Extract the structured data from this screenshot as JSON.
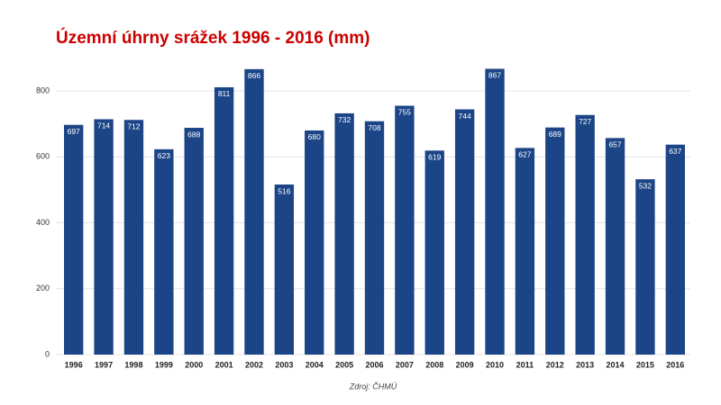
{
  "chart_data": {
    "type": "bar",
    "title": "Územní úhrny srážek 1996 - 2016 (mm)",
    "source": "Zdroj: ČHMÚ",
    "categories": [
      "1996",
      "1997",
      "1998",
      "1999",
      "2000",
      "2001",
      "2002",
      "2003",
      "2004",
      "2005",
      "2006",
      "2007",
      "2008",
      "2009",
      "2010",
      "2011",
      "2012",
      "2013",
      "2014",
      "2015",
      "2016"
    ],
    "values": [
      697,
      714,
      712,
      623,
      688,
      811,
      866,
      516,
      680,
      732,
      708,
      755,
      619,
      744,
      867,
      627,
      689,
      727,
      657,
      532,
      637
    ],
    "color": "#1c4587",
    "ylim": [
      0,
      900
    ],
    "yticks": [
      0,
      200,
      400,
      600,
      800
    ],
    "grid": true
  }
}
